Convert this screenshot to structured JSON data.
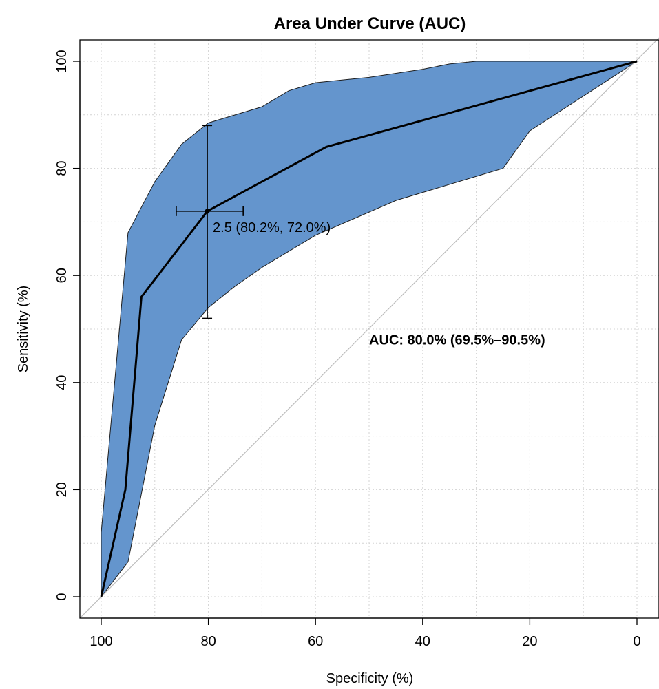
{
  "chart_data": {
    "type": "area",
    "title": "Area Under Curve (AUC)",
    "xlabel": "Specificity (%)",
    "ylabel": "Sensitivity (%)",
    "x_reversed": true,
    "xlim": [
      100,
      0
    ],
    "ylim": [
      0,
      100
    ],
    "xticks": [
      100,
      80,
      60,
      40,
      20,
      0
    ],
    "yticks": [
      0,
      20,
      40,
      60,
      80,
      100
    ],
    "xtick_labels": [
      "100",
      "80",
      "60",
      "40",
      "20",
      "0"
    ],
    "ytick_labels": [
      "0",
      "20",
      "40",
      "60",
      "80",
      "100"
    ],
    "grid": true,
    "ci_band_color": "#6495cd",
    "roc_curve": {
      "specificity": [
        100,
        95.5,
        92.5,
        80.2,
        58,
        0
      ],
      "sensitivity": [
        0,
        20,
        56,
        72.0,
        84,
        100
      ]
    },
    "ci_upper": {
      "specificity": [
        100,
        95,
        90,
        85,
        80,
        70,
        65,
        60,
        50,
        40,
        35,
        30,
        0
      ],
      "sensitivity": [
        12,
        68,
        77.5,
        84.5,
        88.5,
        91.5,
        94.5,
        96,
        97,
        98.5,
        99.5,
        100,
        100
      ]
    },
    "ci_lower": {
      "specificity": [
        100,
        95,
        90,
        85,
        80,
        75,
        70,
        60,
        45,
        30,
        25,
        20,
        0
      ],
      "sensitivity": [
        0,
        6.5,
        32,
        48,
        54,
        58,
        61.5,
        67.5,
        74,
        78.5,
        80,
        87,
        100
      ]
    },
    "threshold_point": {
      "specificity": 80.2,
      "sensitivity": 72.0,
      "spec_ci": [
        86,
        73.5
      ],
      "sens_ci": [
        52,
        88
      ],
      "label": "2.5 (80.2%, 72.0%)"
    },
    "auc_label": "AUC: 80.0% (69.5%–90.5%)"
  }
}
